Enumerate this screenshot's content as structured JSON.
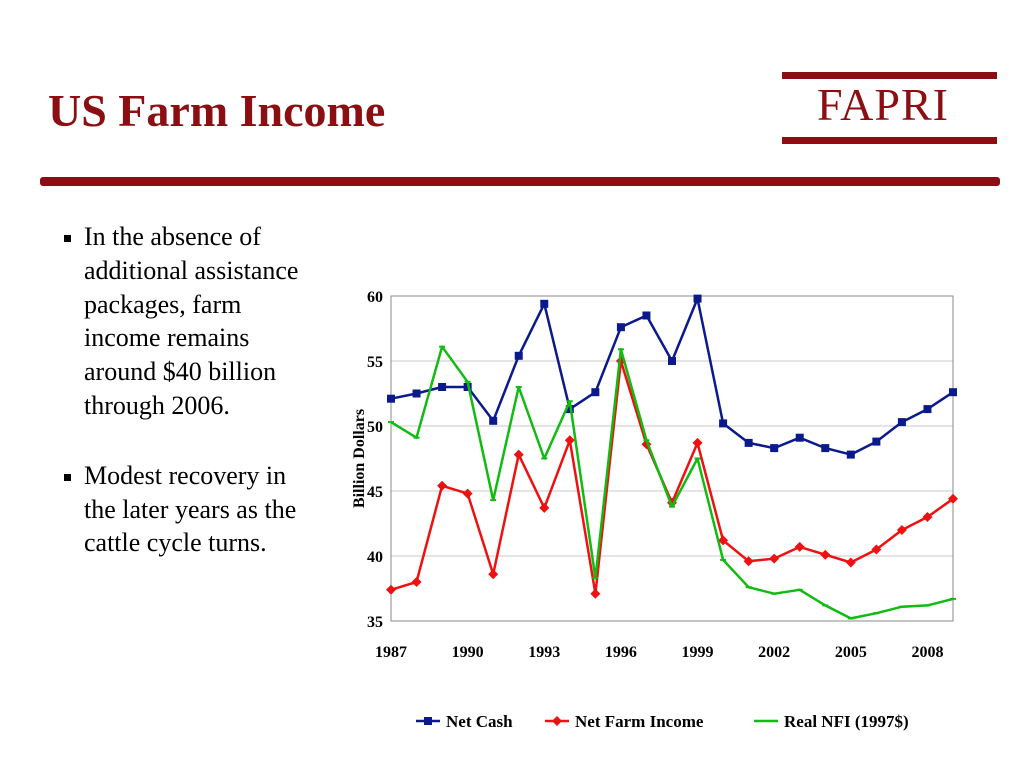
{
  "slide": {
    "title": "US Farm Income",
    "logo": "FAPRI",
    "bullets": [
      "In the absence of additional assistance packages, farm income remains around $40 billion through 2006.",
      "Modest recovery in the later years as the cattle cycle turns."
    ]
  },
  "colors": {
    "brand": "#8b0e12",
    "net_cash": "#0a1a8c",
    "net_farm_income": "#ee1111",
    "real_nfi": "#11bb11"
  },
  "chart_data": {
    "type": "line",
    "title": "",
    "xlabel": "",
    "ylabel": "Billion Dollars",
    "xlim": [
      1987,
      2009
    ],
    "ylim": [
      35,
      60
    ],
    "yticks": [
      35,
      40,
      45,
      50,
      55,
      60
    ],
    "xtick_labels": [
      "1987",
      "1990",
      "1993",
      "1996",
      "1999",
      "2002",
      "2005",
      "2008"
    ],
    "grid": "horizontal",
    "legend": "bottom",
    "x": [
      1987,
      1988,
      1989,
      1990,
      1991,
      1992,
      1993,
      1994,
      1995,
      1996,
      1997,
      1998,
      1999,
      2000,
      2001,
      2002,
      2003,
      2004,
      2005,
      2006,
      2007,
      2008,
      2009
    ],
    "series": [
      {
        "name": "Net Cash",
        "marker": "square",
        "color": "#0a1a8c",
        "values": [
          52.1,
          52.5,
          53.0,
          53.0,
          50.4,
          55.4,
          59.4,
          51.3,
          52.6,
          57.6,
          58.5,
          55.0,
          59.8,
          50.2,
          48.7,
          48.3,
          49.1,
          48.3,
          47.8,
          48.8,
          50.3,
          51.3,
          52.6
        ]
      },
      {
        "name": "Net Farm Income",
        "marker": "diamond",
        "color": "#ee1111",
        "values": [
          37.4,
          38.0,
          45.4,
          44.8,
          38.6,
          47.8,
          43.7,
          48.9,
          37.1,
          55.0,
          48.6,
          44.1,
          48.7,
          41.2,
          39.6,
          39.8,
          40.7,
          40.1,
          39.5,
          40.5,
          42.0,
          43.0,
          44.4
        ]
      },
      {
        "name": "Real NFI (1997$)",
        "marker": "dash",
        "color": "#11bb11",
        "values": [
          50.3,
          49.1,
          56.1,
          53.4,
          44.3,
          53.0,
          47.5,
          51.9,
          38.3,
          55.9,
          48.9,
          43.8,
          47.5,
          39.7,
          37.6,
          37.1,
          37.4,
          36.2,
          35.2,
          35.6,
          36.1,
          36.2,
          36.7
        ]
      }
    ]
  }
}
